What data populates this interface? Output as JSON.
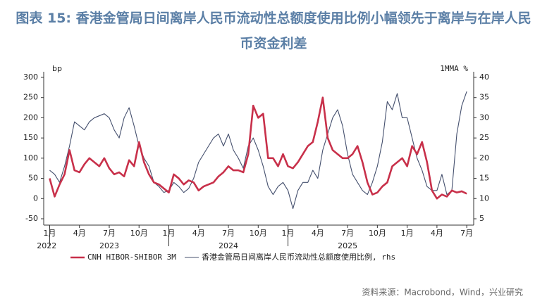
{
  "chart_data": {
    "type": "line",
    "title": "图表 15: 香港金管局日间离岸人民币流动性总额度使用比例小幅领先于离岸与在岸人民币资金利差",
    "y_label": "bp",
    "y2_label": "1MMA %",
    "source": "资料来源：Macrobond，Wind，兴业研究",
    "x": [
      0,
      0.5,
      1,
      1.5,
      2,
      2.5,
      3,
      3.5,
      4,
      4.5,
      5,
      5.5,
      6,
      6.5,
      7,
      7.5,
      8,
      8.5,
      9,
      9.5,
      10,
      10.5,
      11,
      11.5,
      12,
      12.5,
      13,
      13.5,
      14,
      14.5,
      15,
      15.5,
      16,
      16.5,
      17,
      17.5,
      18,
      18.5,
      19,
      19.5,
      20,
      20.5,
      21,
      21.5,
      22,
      22.5,
      23,
      23.5,
      24,
      24.5,
      25,
      25.5,
      26,
      26.5,
      27,
      27.5,
      28,
      28.5,
      29,
      29.5,
      30,
      30.5,
      31,
      31.5,
      32,
      32.5,
      33,
      33.5,
      34,
      34.5,
      35,
      35.5,
      36,
      36.5,
      37,
      37.5,
      38,
      38.5,
      39,
      39.5,
      40,
      40.5,
      41,
      41.5,
      42
    ],
    "xlim": [
      -0.6,
      42.7
    ],
    "xticks": [
      {
        "value": 0,
        "label": "1月"
      },
      {
        "value": 3,
        "label": "4月"
      },
      {
        "value": 6,
        "label": "7月"
      },
      {
        "value": 9,
        "label": "10月"
      },
      {
        "value": 12,
        "label": "1月"
      },
      {
        "value": 15,
        "label": "4月"
      },
      {
        "value": 18,
        "label": "7月"
      },
      {
        "value": 21,
        "label": "10月"
      },
      {
        "value": 24,
        "label": "1月"
      },
      {
        "value": 27,
        "label": "4月"
      },
      {
        "value": 30,
        "label": "7月"
      },
      {
        "value": 33,
        "label": "10月"
      },
      {
        "value": 36,
        "label": "1月"
      },
      {
        "value": 39,
        "label": "4月"
      },
      {
        "value": 42,
        "label": "7月"
      }
    ],
    "years": [
      "2022",
      "2023",
      "2024",
      "2025"
    ],
    "ylim": [
      -50,
      300
    ],
    "yticks": [
      -50,
      0,
      50,
      100,
      150,
      200,
      250,
      300
    ],
    "y2lim": [
      5,
      40
    ],
    "y2ticks": [
      5,
      10,
      15,
      20,
      25,
      30,
      35,
      40
    ],
    "series": [
      {
        "name": "CNH HIBOR-SHIBOR 3M",
        "color": "#c8304a",
        "values": [
          50,
          5,
          35,
          60,
          120,
          70,
          65,
          85,
          100,
          90,
          80,
          100,
          75,
          60,
          65,
          55,
          95,
          80,
          140,
          90,
          60,
          40,
          35,
          25,
          15,
          60,
          50,
          35,
          45,
          40,
          20,
          30,
          35,
          40,
          55,
          65,
          80,
          70,
          70,
          65,
          110,
          230,
          200,
          210,
          100,
          100,
          80,
          110,
          80,
          75,
          90,
          110,
          130,
          140,
          190,
          250,
          150,
          120,
          110,
          100,
          100,
          110,
          130,
          90,
          40,
          10,
          15,
          30,
          40,
          80,
          90,
          100,
          80,
          130,
          110,
          140,
          90,
          20,
          0,
          10,
          5,
          20,
          15,
          18,
          12
        ]
      },
      {
        "name": "香港金管局日间离岸人民币流动性总额度使用比例, rhs",
        "color": "#45506e",
        "axis": "y2",
        "values": [
          17,
          16,
          14,
          18,
          23,
          29,
          28,
          27,
          29,
          30,
          30.5,
          31,
          30,
          27,
          25,
          30,
          32.5,
          28,
          23,
          20,
          18,
          14,
          13,
          11.5,
          12,
          14,
          13,
          11.5,
          12.5,
          15,
          19,
          21,
          23,
          25,
          26,
          23,
          26,
          22,
          20,
          17.5,
          23,
          25,
          22,
          18,
          13,
          11,
          13,
          14,
          12,
          7.5,
          12,
          14,
          14,
          17,
          15,
          22,
          26,
          30,
          32,
          28,
          21,
          16,
          14,
          12,
          11,
          14,
          18,
          24,
          34,
          32,
          36,
          30,
          30,
          25,
          20,
          17,
          13,
          12,
          12,
          16,
          11,
          12,
          26,
          33,
          36.5
        ]
      }
    ]
  }
}
